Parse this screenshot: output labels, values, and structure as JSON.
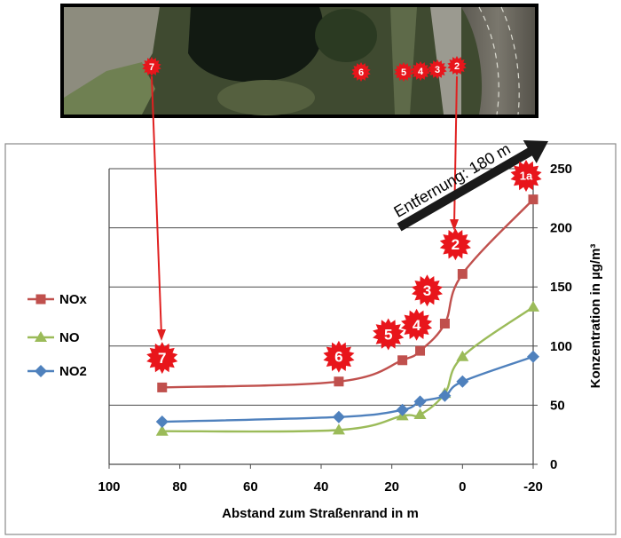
{
  "chart_data": {
    "type": "line",
    "title": "",
    "xlabel": "Abstand zum Straßenrand in m",
    "ylabel": "Konzentration in µg/m³",
    "xlim": [
      100,
      -20
    ],
    "ylim": [
      0,
      250
    ],
    "x_ticks": [
      "100",
      "80",
      "60",
      "40",
      "20",
      "0",
      "-20"
    ],
    "y_ticks": [
      "0",
      "50",
      "100",
      "150",
      "200",
      "250"
    ],
    "grid": "horizontal",
    "legend_position": "left",
    "series": [
      {
        "name": "NOx",
        "color": "#c0504d",
        "marker": "square",
        "x": [
          85,
          35,
          17,
          12,
          5,
          0,
          -20
        ],
        "y": [
          65,
          70,
          88,
          96,
          119,
          161,
          224
        ]
      },
      {
        "name": "NO",
        "color": "#9bbb59",
        "marker": "triangle",
        "x": [
          85,
          35,
          17,
          12,
          5,
          0,
          -20
        ],
        "y": [
          28,
          29,
          41,
          42,
          60,
          91,
          133
        ]
      },
      {
        "name": "NO2",
        "color": "#4f81bd",
        "marker": "diamond",
        "x": [
          85,
          35,
          17,
          12,
          5,
          0,
          -20
        ],
        "y": [
          36,
          40,
          46,
          53,
          58,
          70,
          91
        ]
      }
    ],
    "annotations": {
      "arrow_label": "Entfernung: 180 m",
      "chart_badges": [
        {
          "label": "7",
          "x": 85,
          "y": 90
        },
        {
          "label": "6",
          "x": 35,
          "y": 91
        },
        {
          "label": "5",
          "x": 21,
          "y": 110
        },
        {
          "label": "4",
          "x": 13,
          "y": 118
        },
        {
          "label": "3",
          "x": 10,
          "y": 147
        },
        {
          "label": "2",
          "x": 2,
          "y": 186
        },
        {
          "label": "1a",
          "x": -18,
          "y": 244
        }
      ],
      "map_badges": [
        "7",
        "6",
        "5",
        "4",
        "3",
        "2"
      ]
    }
  }
}
